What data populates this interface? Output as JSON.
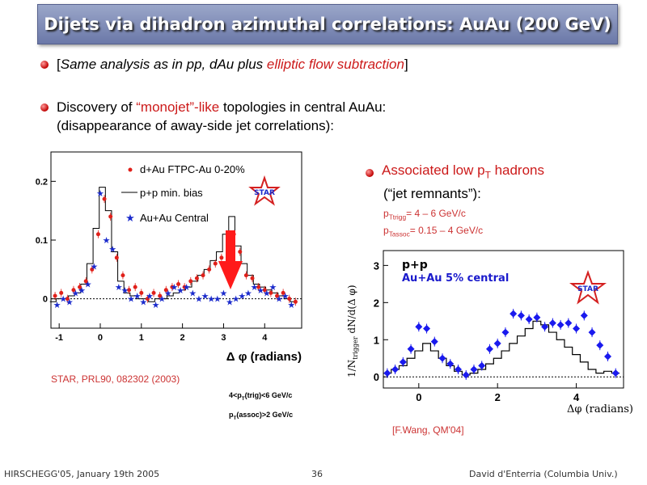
{
  "title": "Dijets via dihadron azimuthal correlations: AuAu (200 GeV)",
  "bullet1": {
    "open": "[",
    "text": "Same analysis as in pp, dAu plus ",
    "highlight": "elliptic flow subtraction",
    "close": "]"
  },
  "bullet2": {
    "pre": "Discovery of ",
    "highlight": "“monojet”-like",
    "post": " topologies in central AuAu:",
    "line2": "(disappearance of away-side jet correlations):"
  },
  "bullet3": {
    "title_pre": "Associated low p",
    "title_sub": "T",
    "title_post": " hadrons",
    "line2": "(“jet remnants”):",
    "trig_pre": "p",
    "trig_sub": "Ttrigg",
    "trig_post": "= 4 – 6 GeV/c",
    "assoc_pre": "p",
    "assoc_sub": "Tassoc",
    "assoc_post": "= 0.15 – 4 GeV/c"
  },
  "left_plot": {
    "reference": "STAR, PRL90, 082302 (2003)",
    "cut1_pre": "4<p",
    "cut1_sub": "T",
    "cut1_post": "(trig)<6 GeV/c",
    "cut2_pre": "p",
    "cut2_sub": "T",
    "cut2_post": "(assoc)>2 GeV/c"
  },
  "right_plot": {
    "reference": "[F.Wang, QM'04]"
  },
  "footer": {
    "left": "HIRSCHEGG'05, January 19th 2005",
    "center": "36",
    "right": "David d'Enterria (Columbia Univ.)"
  },
  "colors": {
    "accent_red": "#cc1a1a",
    "title_bar": "#7b86b5",
    "dAu_marker": "#e0201a",
    "AuAu_marker": "#1a2acc",
    "arrow": "#ff1a1a",
    "star_logo": "#d42020",
    "auau5_marker": "#1a1aee",
    "auau5_text": "#1a1acc"
  },
  "chart_data": [
    {
      "type": "scatter",
      "xlabel": "Δ φ (radians)",
      "ylabel": "",
      "xlim": [
        -1.2,
        4.9
      ],
      "ylim": [
        -0.05,
        0.25
      ],
      "x_ticks": [
        -1,
        0,
        1,
        2,
        3,
        4
      ],
      "y_ticks": [
        0,
        0.1,
        0.2
      ],
      "legend_position": "top-left",
      "legend": [
        "d+Au FTPC-Au 0-20%",
        "p+p min. bias",
        "Au+Au Central"
      ],
      "logo": "STAR",
      "series": [
        {
          "name": "p+p min. bias",
          "style": "histogram",
          "x": [
            -1.15,
            -1.0,
            -0.85,
            -0.7,
            -0.55,
            -0.4,
            -0.25,
            -0.1,
            0.05,
            0.2,
            0.35,
            0.5,
            0.65,
            0.8,
            0.95,
            1.1,
            1.25,
            1.4,
            1.55,
            1.7,
            1.85,
            2.0,
            2.15,
            2.3,
            2.45,
            2.6,
            2.75,
            2.9,
            3.05,
            3.2,
            3.35,
            3.5,
            3.65,
            3.8,
            3.95,
            4.1,
            4.25,
            4.4,
            4.55,
            4.7
          ],
          "values": [
            -0.005,
            0.0,
            0.0,
            0.005,
            0.01,
            0.025,
            0.06,
            0.12,
            0.19,
            0.15,
            0.08,
            0.03,
            0.01,
            0.005,
            0.0,
            0.0,
            -0.005,
            0.0,
            0.0,
            0.005,
            0.01,
            0.015,
            0.02,
            0.03,
            0.04,
            0.05,
            0.065,
            0.08,
            0.11,
            0.14,
            0.09,
            0.06,
            0.04,
            0.025,
            0.02,
            0.015,
            0.01,
            0.005,
            0.0,
            -0.005
          ]
        },
        {
          "name": "d+Au FTPC-Au 0-20%",
          "x": [
            -1.1,
            -0.95,
            -0.8,
            -0.65,
            -0.5,
            -0.35,
            -0.2,
            -0.05,
            0.1,
            0.25,
            0.4,
            0.55,
            0.7,
            0.85,
            1.0,
            1.15,
            1.3,
            1.45,
            1.6,
            1.75,
            1.9,
            2.05,
            2.2,
            2.35,
            2.5,
            2.65,
            2.8,
            2.95,
            3.1,
            3.25,
            3.4,
            3.55,
            3.7,
            3.85,
            4.0,
            4.15,
            4.3,
            4.45,
            4.6,
            4.75
          ],
          "values": [
            0.005,
            0.01,
            0.0,
            0.015,
            0.02,
            0.03,
            0.05,
            0.11,
            0.17,
            0.14,
            0.07,
            0.04,
            0.015,
            0.02,
            0.01,
            0.0,
            0.01,
            0.005,
            0.015,
            0.02,
            0.025,
            0.02,
            0.03,
            0.035,
            0.04,
            0.05,
            0.06,
            0.07,
            0.1,
            0.11,
            0.08,
            0.04,
            0.035,
            0.02,
            0.015,
            0.01,
            0.005,
            0.01,
            0.0,
            -0.005
          ]
        },
        {
          "name": "Au+Au Central",
          "x": [
            -1.05,
            -0.9,
            -0.75,
            -0.6,
            -0.45,
            -0.3,
            -0.15,
            0.0,
            0.15,
            0.3,
            0.45,
            0.6,
            0.75,
            0.9,
            1.05,
            1.2,
            1.35,
            1.5,
            1.65,
            1.8,
            1.95,
            2.1,
            2.25,
            2.4,
            2.55,
            2.7,
            2.85,
            3.0,
            3.15,
            3.3,
            3.45,
            3.6,
            3.75,
            3.9,
            4.05,
            4.2,
            4.35,
            4.5,
            4.65
          ],
          "values": [
            -0.01,
            0.0,
            -0.005,
            0.01,
            0.015,
            0.025,
            0.055,
            0.18,
            0.1,
            0.085,
            0.02,
            0.015,
            0.0,
            0.005,
            -0.005,
            0.005,
            -0.01,
            0.0,
            0.01,
            0.02,
            0.015,
            0.02,
            0.01,
            0.0,
            0.005,
            0.0,
            0.0,
            0.01,
            -0.005,
            0.0,
            0.005,
            0.01,
            0.02,
            0.015,
            0.01,
            0.02,
            0.0,
            0.005,
            -0.01
          ]
        }
      ],
      "annotations": [
        "red arrow pointing down at Δφ≈π"
      ]
    },
    {
      "type": "scatter",
      "xlabel": "Δφ  (radians)",
      "ylabel": "1/N",
      "ylabel_sub": "trigger",
      "ylabel_tail": " dN/d(Δ φ)",
      "xlim": [
        -0.9,
        5.2
      ],
      "ylim": [
        -0.3,
        3.4
      ],
      "x_ticks": [
        0,
        2,
        4
      ],
      "y_ticks": [
        0,
        1,
        2,
        3
      ],
      "legend_position": "top-left",
      "legend": [
        "p+p",
        "Au+Au 5% central"
      ],
      "logo": "STAR",
      "series": [
        {
          "name": "p+p",
          "style": "histogram",
          "x": [
            -0.8,
            -0.6,
            -0.4,
            -0.2,
            0.0,
            0.2,
            0.4,
            0.6,
            0.8,
            1.0,
            1.2,
            1.4,
            1.6,
            1.8,
            2.0,
            2.2,
            2.4,
            2.6,
            2.8,
            3.0,
            3.2,
            3.4,
            3.6,
            3.8,
            4.0,
            4.2,
            4.4,
            4.6,
            4.8,
            5.0
          ],
          "values": [
            0.1,
            0.2,
            0.3,
            0.5,
            0.7,
            0.9,
            0.7,
            0.5,
            0.3,
            0.15,
            0.05,
            0.1,
            0.2,
            0.35,
            0.5,
            0.7,
            0.9,
            1.1,
            1.3,
            1.5,
            1.4,
            1.2,
            1.0,
            0.8,
            0.6,
            0.4,
            0.2,
            0.1,
            0.15,
            0.1
          ]
        },
        {
          "name": "Au+Au 5% central",
          "x": [
            -0.8,
            -0.6,
            -0.4,
            -0.2,
            0.0,
            0.2,
            0.4,
            0.6,
            0.8,
            1.0,
            1.2,
            1.4,
            1.6,
            1.8,
            2.0,
            2.2,
            2.4,
            2.6,
            2.8,
            3.0,
            3.2,
            3.4,
            3.6,
            3.8,
            4.0,
            4.2,
            4.4,
            4.6,
            4.8,
            5.0
          ],
          "values": [
            0.1,
            0.2,
            0.4,
            0.75,
            1.35,
            1.3,
            0.95,
            0.5,
            0.35,
            0.2,
            0.05,
            0.2,
            0.3,
            0.75,
            0.9,
            1.2,
            1.7,
            1.65,
            1.55,
            1.6,
            1.35,
            1.45,
            1.4,
            1.45,
            1.3,
            1.65,
            1.2,
            0.85,
            0.55,
            0.1
          ]
        }
      ]
    }
  ]
}
